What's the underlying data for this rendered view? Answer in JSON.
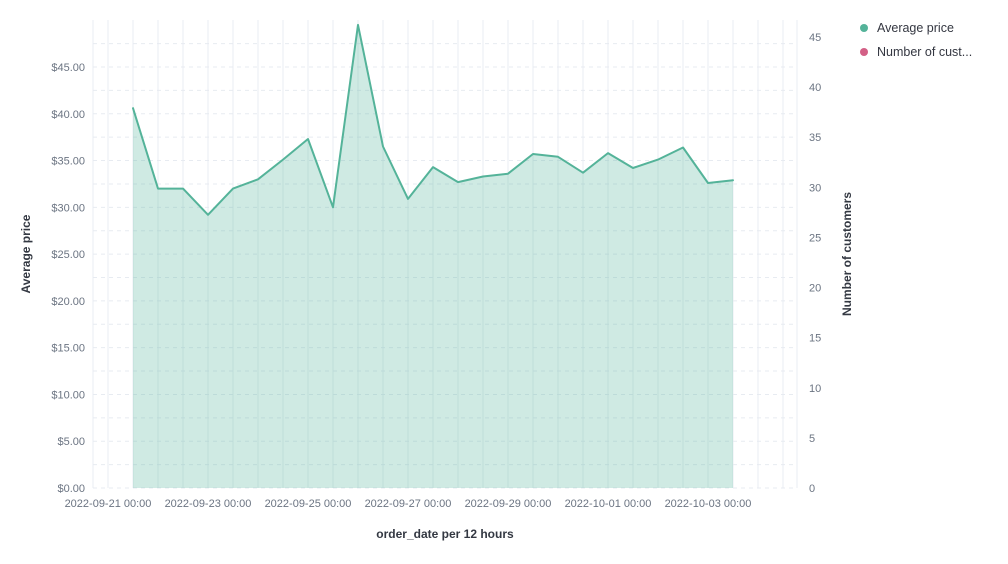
{
  "chart_data": {
    "type": "area",
    "title": "",
    "xlabel": "order_date per 12 hours",
    "ylabel_left": "Average price",
    "ylabel_right": "Number of customers",
    "grid": true,
    "legend_position": "top-right",
    "x": [
      "2022-09-21 12:00",
      "2022-09-22 00:00",
      "2022-09-22 12:00",
      "2022-09-23 00:00",
      "2022-09-23 12:00",
      "2022-09-24 00:00",
      "2022-09-24 12:00",
      "2022-09-25 00:00",
      "2022-09-25 12:00",
      "2022-09-26 00:00",
      "2022-09-26 12:00",
      "2022-09-27 00:00",
      "2022-09-27 12:00",
      "2022-09-28 00:00",
      "2022-09-28 12:00",
      "2022-09-29 00:00",
      "2022-09-29 12:00",
      "2022-09-30 00:00",
      "2022-09-30 12:00",
      "2022-10-01 00:00",
      "2022-10-01 12:00",
      "2022-10-02 00:00",
      "2022-10-02 12:00",
      "2022-10-03 00:00",
      "2022-10-03 12:00"
    ],
    "series": [
      {
        "name": "Average price",
        "axis": "left",
        "color": "#54B399",
        "fill_opacity": 0.28,
        "values": [
          40.6,
          32.0,
          32.0,
          29.2,
          32.0,
          33.0,
          35.1,
          37.3,
          30.0,
          49.5,
          36.5,
          30.9,
          34.3,
          32.7,
          33.3,
          33.6,
          35.7,
          35.4,
          33.7,
          35.8,
          34.2,
          35.1,
          36.4,
          32.6,
          32.9
        ]
      },
      {
        "name": "Number of customers",
        "axis": "right",
        "color": "#D36086",
        "values": []
      }
    ],
    "left_axis": {
      "tick_labels": [
        "$0.00",
        "$5.00",
        "$10.00",
        "$15.00",
        "$20.00",
        "$25.00",
        "$30.00",
        "$35.00",
        "$40.00",
        "$45.00"
      ],
      "tick_values": [
        0,
        5,
        10,
        15,
        20,
        25,
        30,
        35,
        40,
        45
      ],
      "range": [
        0,
        50
      ],
      "minor_grid_step": 2.5
    },
    "right_axis": {
      "tick_labels": [
        "0",
        "5",
        "10",
        "15",
        "20",
        "25",
        "30",
        "35",
        "40",
        "45"
      ],
      "tick_values": [
        0,
        5,
        10,
        15,
        20,
        25,
        30,
        35,
        40,
        45
      ],
      "range": [
        0,
        47
      ]
    },
    "x_ticks": [
      "2022-09-21 00:00",
      "2022-09-23 00:00",
      "2022-09-25 00:00",
      "2022-09-27 00:00",
      "2022-09-29 00:00",
      "2022-10-01 00:00",
      "2022-10-03 00:00"
    ]
  },
  "legend": {
    "items": [
      {
        "label": "Average price",
        "color": "#54B399"
      },
      {
        "label": "Number of cust...",
        "color": "#D36086"
      }
    ]
  },
  "colors": {
    "series_green": "#54B399",
    "series_pink": "#D36086",
    "grid_vertical": "#e9edf3",
    "grid_horizontal": "#e7ebf1",
    "tick_text": "#6b7482",
    "title_text": "#333842",
    "background": "#ffffff"
  }
}
